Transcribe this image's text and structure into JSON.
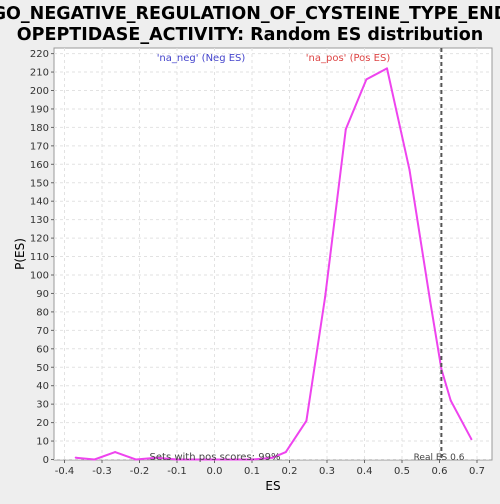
{
  "chart_data": {
    "type": "line",
    "title_lines": [
      "GO_NEGATIVE_REGULATION_OF_CYSTEINE_TYPE_END",
      "OPEPTIDASE_ACTIVITY: Random ES distribution"
    ],
    "xlabel": "ES",
    "ylabel": "P(ES)",
    "xlim": [
      -0.4,
      0.74
    ],
    "ylim": [
      0,
      222
    ],
    "xticks": [
      -0.4,
      -0.3,
      -0.2,
      -0.1,
      0.0,
      0.1,
      0.2,
      0.3,
      0.4,
      0.5,
      0.6,
      0.7
    ],
    "xtick_labels": [
      "-0.4",
      "-0.3",
      "-0.2",
      "-0.1",
      "0.0",
      "0.1",
      "0.2",
      "0.3",
      "0.4",
      "0.5",
      "0.6",
      "0.7"
    ],
    "yticks": [
      0,
      10,
      20,
      30,
      40,
      50,
      60,
      70,
      80,
      90,
      100,
      110,
      120,
      130,
      140,
      150,
      160,
      170,
      180,
      190,
      200,
      210,
      220
    ],
    "grid": true,
    "series": [
      {
        "color": "#ee44ee",
        "x": [
          -0.37,
          -0.32,
          -0.265,
          -0.21,
          -0.155,
          -0.1,
          0.0,
          0.1,
          0.155,
          0.19,
          0.245,
          0.295,
          0.35,
          0.405,
          0.46,
          0.52,
          0.575,
          0.605,
          0.63,
          0.685
        ],
        "y": [
          1,
          0,
          4,
          0,
          1,
          0,
          0,
          0,
          1,
          4,
          21,
          88,
          179,
          206,
          212,
          157,
          86,
          49,
          32,
          11
        ]
      }
    ],
    "legend_labels": [
      {
        "text": "'na_neg' (Neg ES)",
        "color": "#4444cc"
      },
      {
        "text": "'na_pos' (Pos ES)",
        "color": "#dd4444"
      }
    ],
    "reference_line": {
      "x": 0.605,
      "label": "Real ES 0.6"
    },
    "annotation": "Sets with pos scores: 99%"
  }
}
